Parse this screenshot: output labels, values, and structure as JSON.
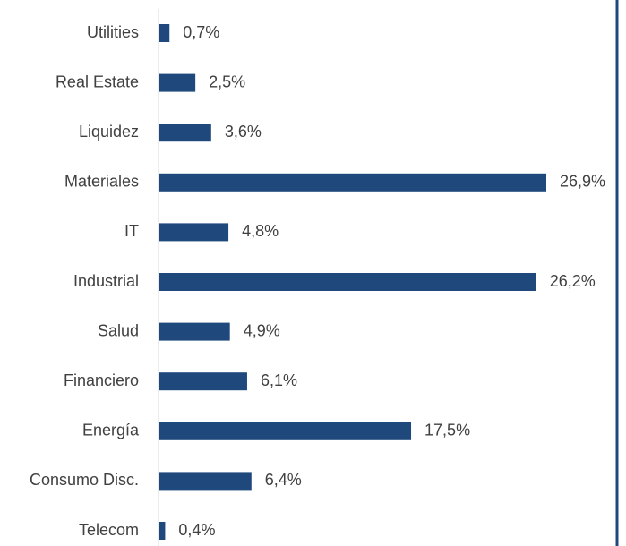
{
  "chart_data": {
    "type": "bar",
    "orientation": "horizontal",
    "categories": [
      "Utilities",
      "Real Estate",
      "Liquidez",
      "Materiales",
      "IT",
      "Industrial",
      "Salud",
      "Financiero",
      "Energía",
      "Consumo Disc.",
      "Telecom"
    ],
    "values": [
      0.7,
      2.5,
      3.6,
      26.9,
      4.8,
      26.2,
      4.9,
      6.1,
      17.5,
      6.4,
      0.4
    ],
    "value_labels": [
      "0,7%",
      "2,5%",
      "3,6%",
      "26,9%",
      "4,8%",
      "26,2%",
      "4,9%",
      "6,1%",
      "17,5%",
      "6,4%",
      "0,4%"
    ],
    "title": "",
    "xlabel": "",
    "ylabel": "",
    "xlim": [
      0,
      26.9
    ],
    "grid": false,
    "bar_color": "#1f497d",
    "axis_color": "#d9d9d9",
    "border_color": "#1f497d"
  }
}
